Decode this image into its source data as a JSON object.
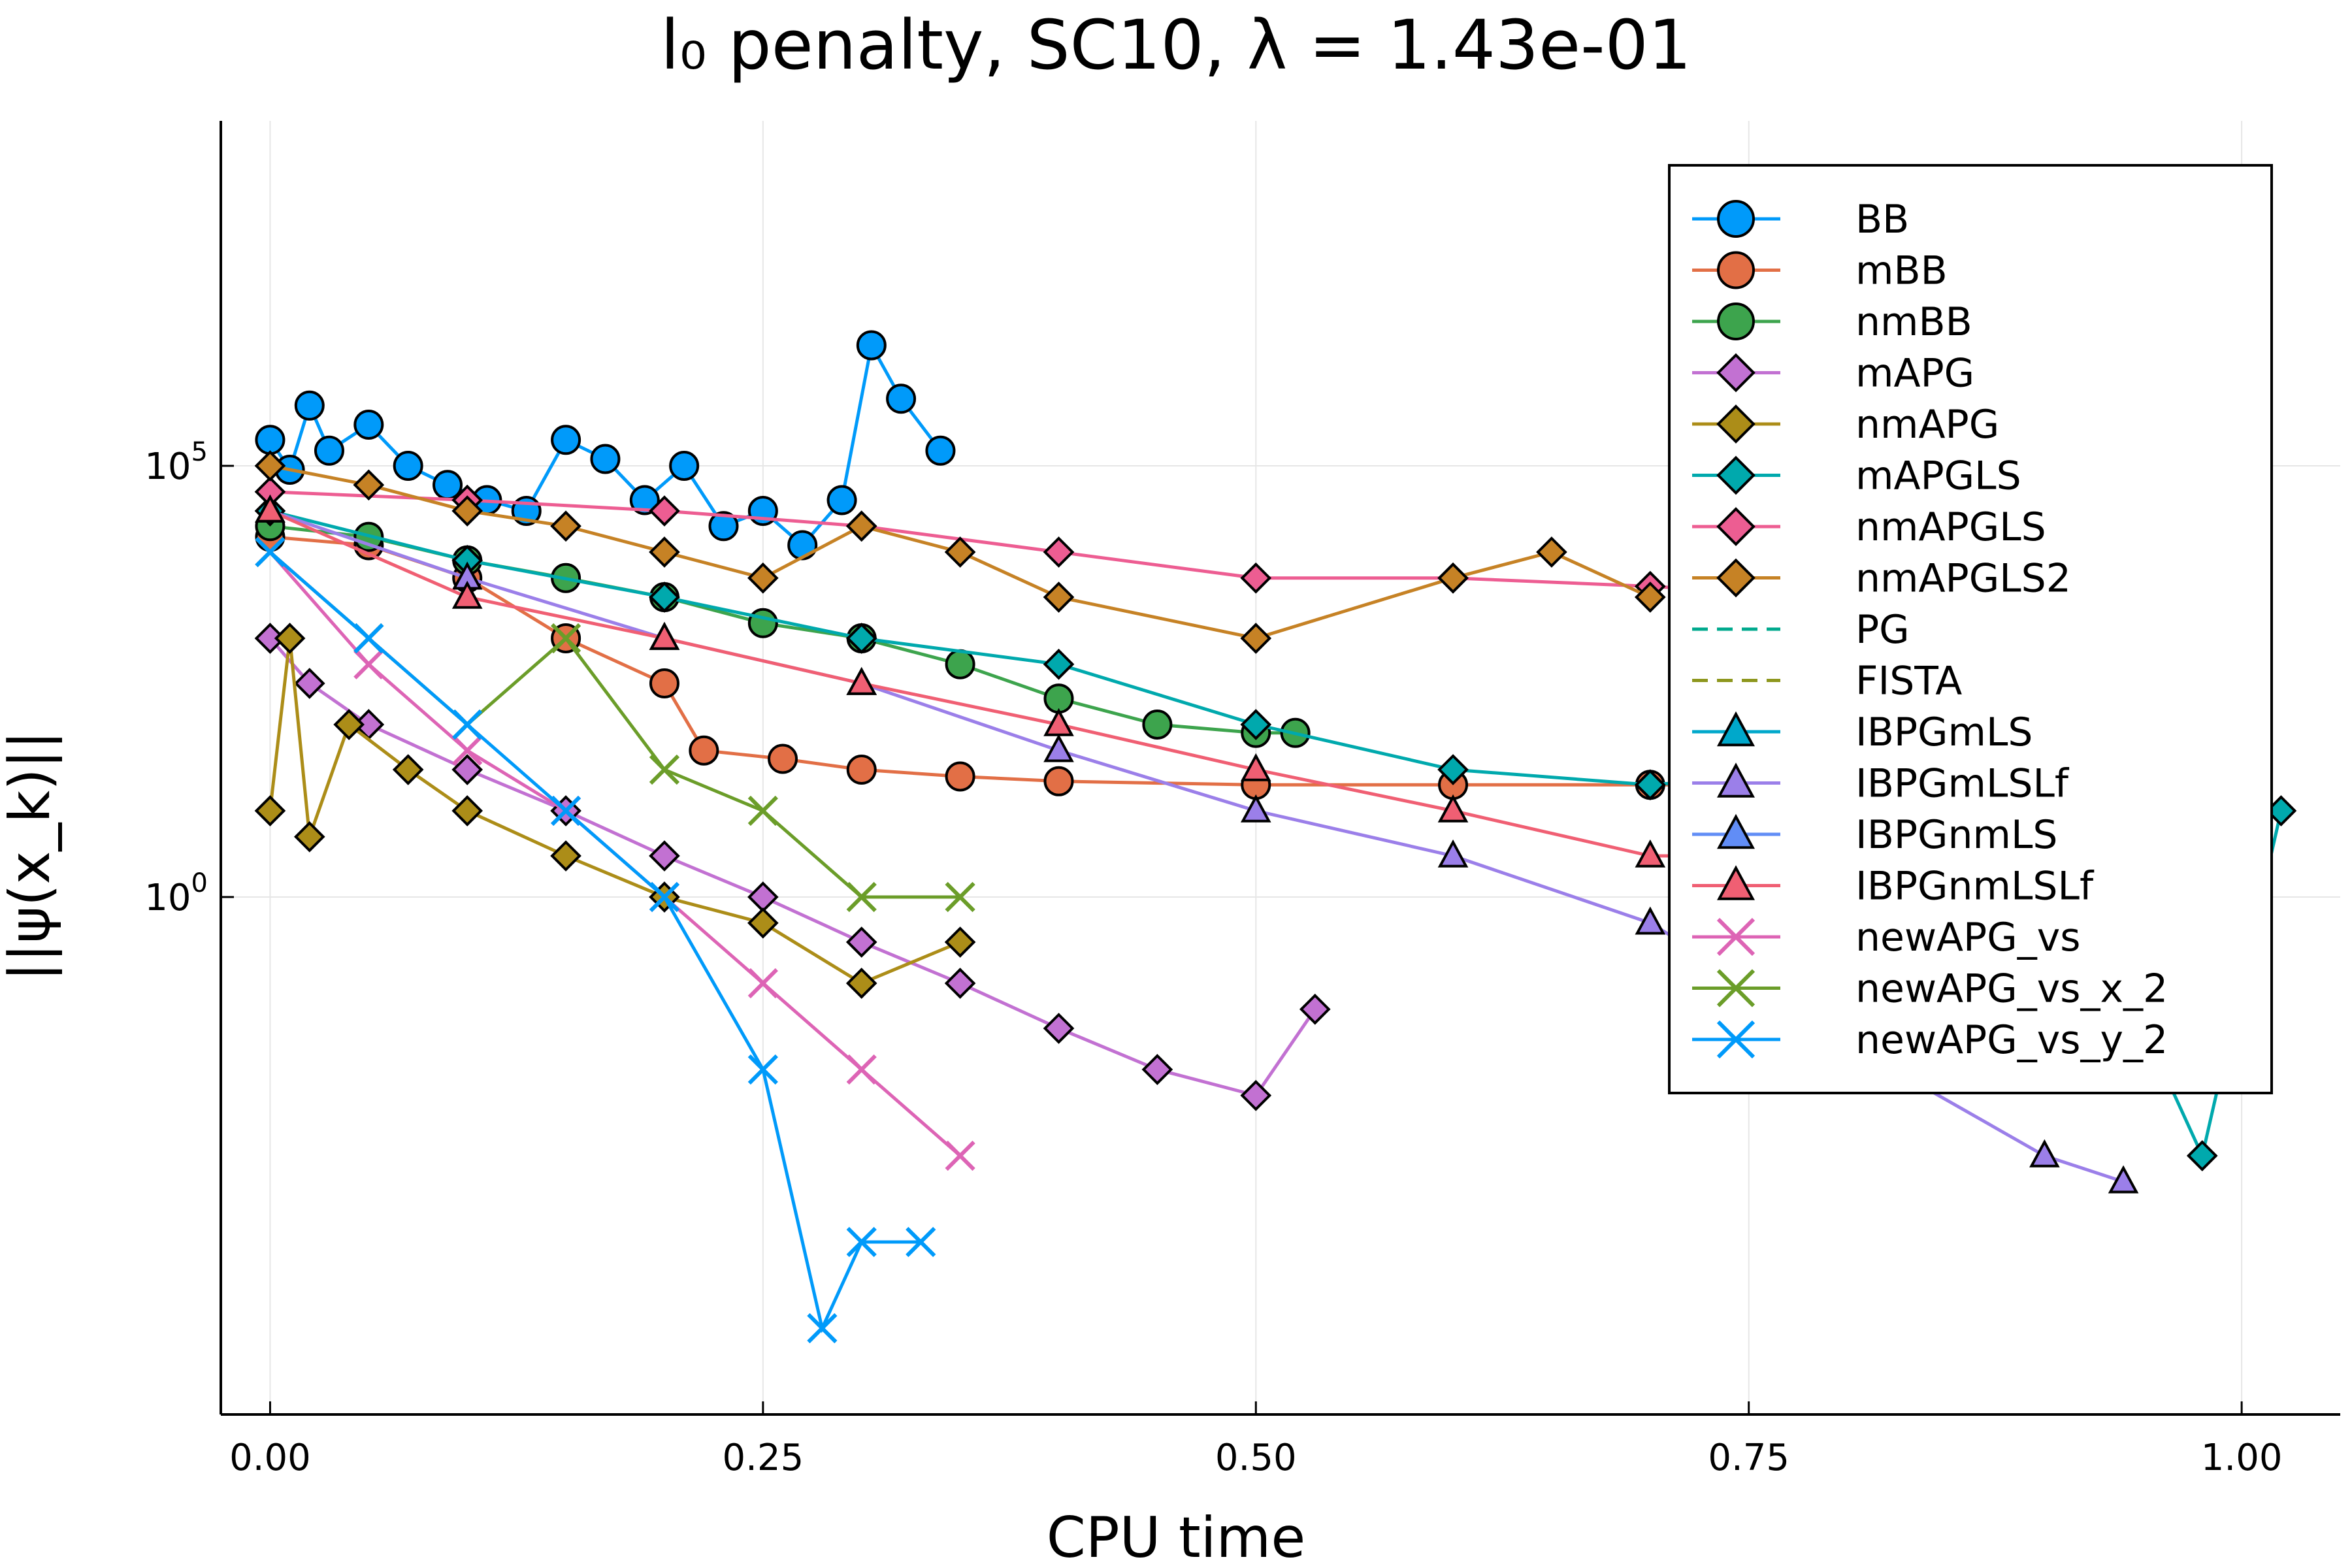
{
  "chart_data": {
    "type": "line",
    "title": "l₀ penalty, SC10, λ = 1.43e-01",
    "xlabel": "CPU time",
    "ylabel": "||ψ(x_k)||",
    "yscale": "log",
    "xlim": [
      -0.025,
      1.05
    ],
    "ylim": [
      1e-06,
      1000000000.0
    ],
    "xticks": [
      0.0,
      0.25,
      0.5,
      0.75,
      1.0
    ],
    "xtick_labels": [
      "0.00",
      "0.25",
      "0.50",
      "0.75",
      "1.00"
    ],
    "yticks": [
      1,
      100000
    ],
    "ytick_base": "10",
    "ytick_exponents": [
      "0",
      "5"
    ],
    "grid": true,
    "legend_position": "top-right",
    "series": [
      {
        "name": "BB",
        "color": "#009AFA",
        "marker": "circle",
        "line": "solid",
        "x": [
          0.0,
          0.01,
          0.02,
          0.03,
          0.05,
          0.07,
          0.09,
          0.11,
          0.13,
          0.15,
          0.17,
          0.19,
          0.21,
          0.23,
          0.25,
          0.27,
          0.29,
          0.305,
          0.32,
          0.34
        ],
        "y": [
          200000,
          90000,
          500000,
          150000,
          300000,
          100000,
          60000,
          40000,
          30000,
          200000,
          120000,
          40000,
          100000,
          20000,
          30000,
          12000,
          40000,
          2500000,
          600000,
          150000
        ]
      },
      {
        "name": "mBB",
        "color": "#E26F46",
        "marker": "circle",
        "line": "solid",
        "x": [
          0.0,
          0.05,
          0.1,
          0.15,
          0.2,
          0.22,
          0.26,
          0.3,
          0.35,
          0.4,
          0.5,
          0.6,
          0.7,
          0.72
        ],
        "y": [
          15000,
          12000,
          5000,
          1000,
          300,
          50,
          40,
          30,
          25,
          22,
          20,
          20,
          20,
          20
        ]
      },
      {
        "name": "nmBB",
        "color": "#3DA44D",
        "marker": "circle",
        "line": "solid",
        "x": [
          0.0,
          0.05,
          0.1,
          0.15,
          0.2,
          0.25,
          0.3,
          0.35,
          0.4,
          0.45,
          0.5,
          0.52
        ],
        "y": [
          20000,
          15000,
          8000,
          5000,
          3000,
          1500,
          1000,
          500,
          200,
          100,
          80,
          80
        ]
      },
      {
        "name": "mAPG",
        "color": "#C271D2",
        "marker": "diamond",
        "line": "solid",
        "x": [
          0.0,
          0.02,
          0.05,
          0.1,
          0.15,
          0.2,
          0.25,
          0.3,
          0.35,
          0.4,
          0.45,
          0.5,
          0.53
        ],
        "y": [
          1000,
          300,
          100,
          30,
          10,
          3,
          1,
          0.3,
          0.1,
          0.03,
          0.01,
          0.005,
          0.05
        ]
      },
      {
        "name": "nmAPG",
        "color": "#AC8D18",
        "marker": "diamond",
        "line": "solid",
        "x": [
          0.0,
          0.01,
          0.02,
          0.04,
          0.07,
          0.1,
          0.15,
          0.2,
          0.25,
          0.3,
          0.35
        ],
        "y": [
          10,
          1000,
          5,
          100,
          30,
          10,
          3,
          1,
          0.5,
          0.1,
          0.3
        ]
      },
      {
        "name": "mAPGLS",
        "color": "#00A9AD",
        "marker": "diamond",
        "line": "solid",
        "x": [
          0.0,
          0.1,
          0.2,
          0.3,
          0.4,
          0.5,
          0.6,
          0.7,
          0.8,
          0.9,
          0.98,
          1.02
        ],
        "y": [
          30000,
          8000,
          3000,
          1000,
          500,
          100,
          30,
          20,
          30,
          10,
          0.001,
          10
        ]
      },
      {
        "name": "nmAPGLS",
        "color": "#ED5D92",
        "marker": "diamond",
        "line": "solid",
        "x": [
          0.0,
          0.1,
          0.2,
          0.3,
          0.4,
          0.5,
          0.6,
          0.7,
          0.8,
          0.9,
          0.95
        ],
        "y": [
          50000,
          40000,
          30000,
          20000,
          10000,
          5000,
          5000,
          4000,
          3000,
          3000,
          3000
        ]
      },
      {
        "name": "nmAPGLS2",
        "color": "#C68225",
        "marker": "diamond",
        "line": "solid",
        "x": [
          0.0,
          0.05,
          0.1,
          0.15,
          0.2,
          0.25,
          0.3,
          0.35,
          0.4,
          0.5,
          0.6,
          0.65,
          0.7
        ],
        "y": [
          100000,
          60000,
          30000,
          20000,
          10000,
          5000,
          20000,
          10000,
          3000,
          1000,
          5000,
          10000,
          3000
        ]
      },
      {
        "name": "PG",
        "color": "#00A98D",
        "marker": "none",
        "line": "dash",
        "x": [],
        "y": []
      },
      {
        "name": "FISTA",
        "color": "#8E971E",
        "marker": "none",
        "line": "dash",
        "x": [],
        "y": []
      },
      {
        "name": "IBPGmLS",
        "color": "#00A8CB",
        "marker": "triangle",
        "line": "solid",
        "x": [],
        "y": []
      },
      {
        "name": "IBPGmLSLf",
        "color": "#9B7FE9",
        "marker": "triangle",
        "line": "solid",
        "x": [
          0.0,
          0.1,
          0.2,
          0.3,
          0.4,
          0.5,
          0.6,
          0.7,
          0.8,
          0.9,
          0.94
        ],
        "y": [
          30000,
          5000,
          1000,
          300,
          50,
          10,
          3,
          0.5,
          0.02,
          0.001,
          0.0005
        ]
      },
      {
        "name": "IBPGnmLS",
        "color": "#618DF6",
        "marker": "triangle",
        "line": "solid",
        "x": [],
        "y": []
      },
      {
        "name": "IBPGnmLSLf",
        "color": "#F05F73",
        "marker": "triangle",
        "line": "solid",
        "x": [
          0.0,
          0.1,
          0.2,
          0.3,
          0.4,
          0.5,
          0.6,
          0.7,
          0.8,
          0.85
        ],
        "y": [
          30000,
          3000,
          1000,
          300,
          100,
          30,
          10,
          3,
          3,
          3
        ]
      },
      {
        "name": "newAPG_vs",
        "color": "#DD64B5",
        "marker": "x",
        "line": "solid",
        "x": [
          0.0,
          0.05,
          0.1,
          0.15,
          0.2,
          0.25,
          0.3,
          0.35
        ],
        "y": [
          10000,
          500,
          50,
          10,
          1,
          0.1,
          0.01,
          0.001
        ]
      },
      {
        "name": "newAPG_vs_x_2",
        "color": "#6B9D29",
        "marker": "x",
        "line": "solid",
        "x": [
          0.0,
          0.05,
          0.1,
          0.15,
          0.2,
          0.25,
          0.3,
          0.35
        ],
        "y": [
          10000,
          1000,
          100,
          1000,
          30,
          10,
          1,
          1
        ]
      },
      {
        "name": "newAPG_vs_y_2",
        "color": "#009AFA",
        "marker": "x",
        "line": "solid",
        "x": [
          0.0,
          0.05,
          0.1,
          0.15,
          0.2,
          0.25,
          0.28,
          0.3,
          0.33
        ],
        "y": [
          10000,
          1000,
          100,
          10,
          1,
          0.01,
          1e-05,
          0.0001,
          0.0001
        ]
      }
    ]
  }
}
